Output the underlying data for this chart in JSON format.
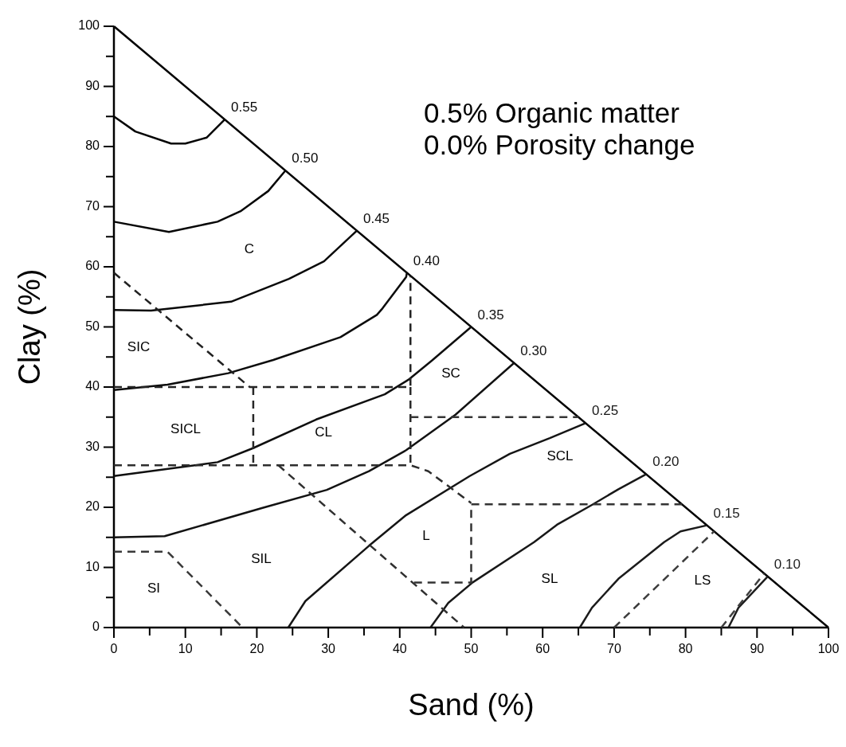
{
  "chart_data": {
    "type": "line",
    "xlabel": "Sand (%)",
    "ylabel": "Clay (%)",
    "xlim": [
      0,
      100
    ],
    "ylim": [
      0,
      100
    ],
    "xticks": [
      0,
      {
        "value": 5,
        "label": null
      },
      10,
      {
        "value": 15,
        "label": null
      },
      20,
      {
        "value": 25,
        "label": null
      },
      30,
      {
        "value": 35,
        "label": null
      },
      40,
      {
        "value": 45,
        "label": null
      },
      50,
      {
        "value": 55,
        "label": null
      },
      60,
      {
        "value": 65,
        "label": null
      },
      70,
      {
        "value": 75,
        "label": null
      },
      80,
      {
        "value": 85,
        "label": null
      },
      90,
      {
        "value": 95,
        "label": null
      },
      100
    ],
    "yticks": [
      0,
      {
        "value": 5,
        "label": null
      },
      10,
      {
        "value": 15,
        "label": null
      },
      20,
      {
        "value": 25,
        "label": null
      },
      30,
      {
        "value": 35,
        "label": null
      },
      40,
      {
        "value": 45,
        "label": null
      },
      50,
      {
        "value": 55,
        "label": null
      },
      60,
      {
        "value": 65,
        "label": null
      },
      70,
      {
        "value": 75,
        "label": null
      },
      80,
      {
        "value": 85,
        "label": null
      },
      90,
      {
        "value": 95,
        "label": null
      },
      100
    ],
    "grid": false,
    "marker": "none",
    "line_style": "solid",
    "series": [
      {
        "color": "#000000",
        "x": [
          0,
          100
        ],
        "values": [
          100,
          0
        ]
      },
      {
        "name": "0.55",
        "color": "#030303",
        "x": [
          0,
          3,
          8,
          10,
          13,
          15.5
        ],
        "values": [
          85,
          82.5,
          80.5,
          80.5,
          81.5,
          84.5
        ]
      },
      {
        "name": "0.50",
        "color": "#060606",
        "x": [
          0,
          7.7,
          14.5,
          17.8,
          21.6,
          24
        ],
        "values": [
          67.5,
          65.8,
          67.5,
          69.3,
          72.6,
          76
        ]
      },
      {
        "name": "0.45",
        "color": "#090909",
        "x": [
          0,
          5.2,
          16.4,
          24.5,
          29.4,
          34
        ],
        "values": [
          52.8,
          52.7,
          54.2,
          58,
          60.9,
          66
        ]
      },
      {
        "name": "0.40",
        "color": "#0c0c0c",
        "x": [
          0,
          7.5,
          16,
          22.3,
          31.7,
          36.8,
          37.6,
          40.9,
          41
        ],
        "values": [
          39.5,
          40.4,
          42.3,
          44.5,
          48.3,
          52,
          53.1,
          58.3,
          59
        ]
      },
      {
        "name": "0.35",
        "color": "#0f0f0f",
        "x": [
          0,
          14.5,
          19.4,
          28.3,
          37.9,
          41.2,
          44.5,
          50
        ],
        "values": [
          25.2,
          27.5,
          29.8,
          34.6,
          38.8,
          41.2,
          44.4,
          50
        ]
      },
      {
        "name": "0.30",
        "color": "#121212",
        "x": [
          0,
          7.1,
          20.8,
          29.8,
          35.7,
          40.9,
          47.8,
          56
        ],
        "values": [
          15,
          15.2,
          19.9,
          22.9,
          26,
          29.5,
          35.4,
          44
        ]
      },
      {
        "name": "0.25",
        "color": "#151515",
        "x": [
          24.4,
          26.8,
          35.7,
          40.9,
          49.8,
          55.4,
          61,
          66
        ],
        "values": [
          0,
          4.4,
          13.6,
          18.7,
          25.2,
          28.9,
          31.5,
          34
        ]
      },
      {
        "name": "0.20",
        "color": "#181818",
        "x": [
          44.3,
          46.8,
          50.2,
          58.8,
          62,
          66.9,
          70.6,
          74.5
        ],
        "values": [
          0,
          4.1,
          7.5,
          14.2,
          17.1,
          20.4,
          23,
          25.5
        ]
      },
      {
        "name": "0.15",
        "color": "#1b1b1b",
        "x": [
          65.2,
          66.9,
          70.6,
          77,
          79.3,
          83
        ],
        "values": [
          0,
          3.3,
          8.1,
          14.2,
          16,
          17
        ]
      },
      {
        "name": "0.10",
        "color": "#1e1e1e",
        "x": [
          86,
          87.4,
          91.5
        ],
        "values": [
          0,
          3.3,
          8.5
        ]
      },
      {
        "color": "#212121",
        "line_style": "dashed",
        "x": [
          0,
          19
        ],
        "values": [
          59,
          40
        ]
      },
      {
        "color": "#242424",
        "line_style": "dashed",
        "x": [
          0,
          41.5,
          41.5
        ],
        "values": [
          40,
          40,
          58.5
        ]
      },
      {
        "color": "#272727",
        "line_style": "dashed",
        "x": [
          19.5,
          19.5
        ],
        "values": [
          40,
          27
        ]
      },
      {
        "color": "#2a2a2a",
        "line_style": "dashed",
        "x": [
          41.5,
          41.5
        ],
        "values": [
          40,
          27
        ]
      },
      {
        "color": "#2d2d2d",
        "line_style": "dashed",
        "x": [
          0,
          41.5,
          44,
          50
        ],
        "values": [
          27,
          27,
          26,
          20.7
        ]
      },
      {
        "color": "#303030",
        "line_style": "dashed",
        "x": [
          23,
          49
        ],
        "values": [
          27,
          0
        ]
      },
      {
        "color": "#333333",
        "line_style": "dashed",
        "x": [
          42,
          50,
          50,
          79.5
        ],
        "values": [
          7.5,
          7.5,
          20.5,
          20.5
        ]
      },
      {
        "color": "#363636",
        "line_style": "dashed",
        "x": [
          41.5,
          65
        ],
        "values": [
          35,
          35
        ]
      },
      {
        "color": "#393939",
        "line_style": "dashed",
        "x": [
          0,
          7.5,
          18
        ],
        "values": [
          12.6,
          12.6,
          0
        ]
      },
      {
        "color": "#3c3c3c",
        "line_style": "dashed",
        "x": [
          70,
          84
        ],
        "values": [
          0,
          16
        ]
      },
      {
        "color": "#3f3f3f",
        "line_style": "dashed",
        "x": [
          85,
          91
        ],
        "values": [
          0,
          9
        ]
      }
    ],
    "annotations": [
      "0.5% Organic matter",
      "0.0% Porosity change",
      "C",
      "SIC",
      "SICL",
      "CL",
      "SC",
      "SCL",
      "L",
      "SIL",
      "SI",
      "SL",
      "LS"
    ]
  }
}
